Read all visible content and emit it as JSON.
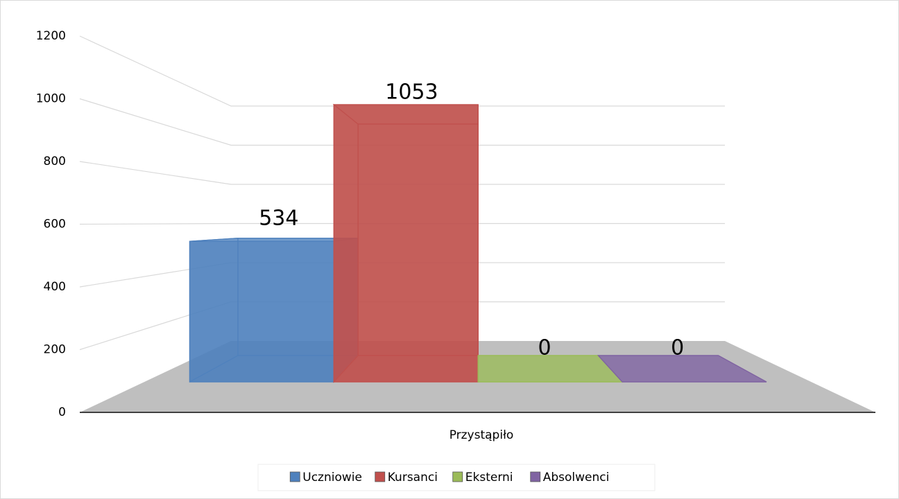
{
  "chart_data": {
    "type": "bar3d",
    "categories": [
      "Przystąpiło"
    ],
    "series": [
      {
        "name": "Uczniowie",
        "color": "#4f81bd",
        "values": [
          534
        ]
      },
      {
        "name": "Kursanci",
        "color": "#c0504d",
        "values": [
          1053
        ]
      },
      {
        "name": "Eksterni",
        "color": "#9bbb59",
        "values": [
          0
        ]
      },
      {
        "name": "Absolwenci",
        "color": "#8064a2",
        "values": [
          0
        ]
      }
    ],
    "ylim": [
      0,
      1200
    ],
    "yticks": [
      0,
      200,
      400,
      600,
      800,
      1000,
      1200
    ],
    "grid": true,
    "legend": "bottom"
  }
}
